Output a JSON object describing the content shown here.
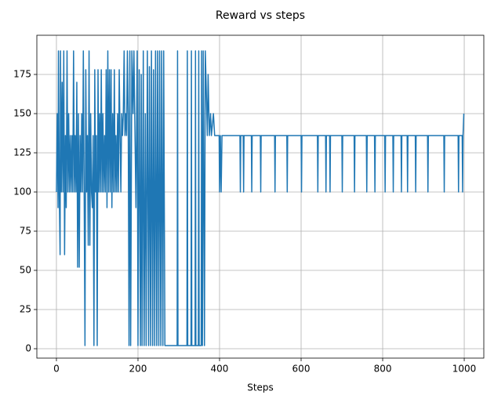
{
  "chart_data": {
    "type": "line",
    "title": "Reward vs steps",
    "x_label": "Steps",
    "color": "#1f77b4",
    "grid": true,
    "xlim": [
      -48,
      1048
    ],
    "ylim": [
      -6,
      200
    ],
    "xticks": [
      0,
      200,
      400,
      600,
      800,
      1000
    ],
    "yticks": [
      0,
      25,
      50,
      75,
      100,
      125,
      150,
      175
    ],
    "x": [
      0,
      2,
      4,
      5,
      7,
      9,
      10,
      12,
      14,
      16,
      18,
      20,
      22,
      24,
      26,
      28,
      30,
      32,
      34,
      36,
      38,
      40,
      42,
      44,
      46,
      48,
      50,
      52,
      54,
      56,
      58,
      60,
      62,
      64,
      66,
      68,
      70,
      72,
      74,
      76,
      78,
      80,
      82,
      84,
      86,
      88,
      90,
      92,
      94,
      96,
      98,
      100,
      102,
      104,
      106,
      108,
      110,
      112,
      114,
      116,
      118,
      120,
      122,
      124,
      126,
      128,
      130,
      132,
      134,
      136,
      138,
      140,
      142,
      144,
      146,
      148,
      150,
      152,
      154,
      156,
      158,
      160,
      162,
      164,
      166,
      168,
      170,
      172,
      174,
      176,
      178,
      180,
      182,
      185,
      188,
      190,
      195,
      198,
      200,
      203,
      206,
      208,
      210,
      213,
      215,
      218,
      220,
      223,
      226,
      228,
      231,
      233,
      236,
      238,
      241,
      243,
      246,
      248,
      251,
      253,
      256,
      258,
      261,
      263,
      266,
      296,
      297,
      298,
      320,
      321,
      322,
      330,
      331,
      332,
      340,
      341,
      342,
      348,
      349,
      350,
      355,
      356,
      358,
      360,
      363,
      365,
      367,
      370,
      372,
      375,
      378,
      380,
      385,
      388,
      395,
      399,
      400,
      402,
      404,
      406,
      450,
      451,
      452,
      458,
      459,
      460,
      478,
      479,
      480,
      500,
      501,
      502,
      535,
      536,
      537,
      565,
      566,
      567,
      600,
      601,
      602,
      640,
      641,
      642,
      660,
      661,
      662,
      670,
      671,
      672,
      700,
      701,
      702,
      730,
      731,
      732,
      760,
      761,
      762,
      780,
      781,
      782,
      805,
      806,
      807,
      825,
      826,
      827,
      845,
      846,
      847,
      860,
      861,
      862,
      880,
      881,
      882,
      910,
      911,
      912,
      950,
      951,
      952,
      985,
      986,
      987,
      995,
      996,
      997,
      999
    ],
    "values": [
      100,
      150,
      90,
      190,
      100,
      60,
      190,
      100,
      170,
      100,
      190,
      60,
      136,
      90,
      190,
      100,
      150,
      100,
      136,
      100,
      136,
      100,
      190,
      100,
      136,
      100,
      170,
      52,
      150,
      52,
      136,
      100,
      150,
      100,
      190,
      100,
      2,
      178,
      100,
      136,
      66,
      190,
      66,
      150,
      100,
      90,
      136,
      2,
      178,
      100,
      136,
      2,
      178,
      100,
      150,
      100,
      178,
      100,
      150,
      100,
      136,
      100,
      178,
      90,
      190,
      100,
      178,
      100,
      178,
      90,
      150,
      100,
      178,
      100,
      136,
      100,
      150,
      100,
      178,
      136,
      100,
      150,
      136,
      150,
      190,
      136,
      150,
      136,
      190,
      150,
      2,
      190,
      2,
      190,
      150,
      190,
      90,
      190,
      2,
      178,
      2,
      175,
      2,
      190,
      2,
      150,
      2,
      190,
      2,
      180,
      2,
      190,
      2,
      178,
      2,
      190,
      2,
      190,
      2,
      190,
      2,
      190,
      2,
      190,
      2,
      2,
      190,
      2,
      2,
      190,
      2,
      2,
      190,
      2,
      2,
      190,
      2,
      2,
      190,
      2,
      2,
      190,
      2,
      190,
      2,
      190,
      170,
      136,
      175,
      136,
      150,
      136,
      150,
      136,
      136,
      136,
      100,
      136,
      100,
      136,
      136,
      100,
      136,
      136,
      100,
      136,
      136,
      100,
      136,
      136,
      100,
      136,
      136,
      100,
      136,
      136,
      100,
      136,
      136,
      100,
      136,
      136,
      100,
      136,
      136,
      100,
      136,
      136,
      100,
      136,
      136,
      100,
      136,
      136,
      100,
      136,
      136,
      100,
      136,
      136,
      100,
      136,
      136,
      100,
      136,
      136,
      100,
      136,
      136,
      100,
      136,
      136,
      100,
      136,
      136,
      100,
      136,
      136,
      100,
      136,
      136,
      100,
      136,
      136,
      100,
      136,
      136,
      100,
      136,
      150
    ]
  }
}
